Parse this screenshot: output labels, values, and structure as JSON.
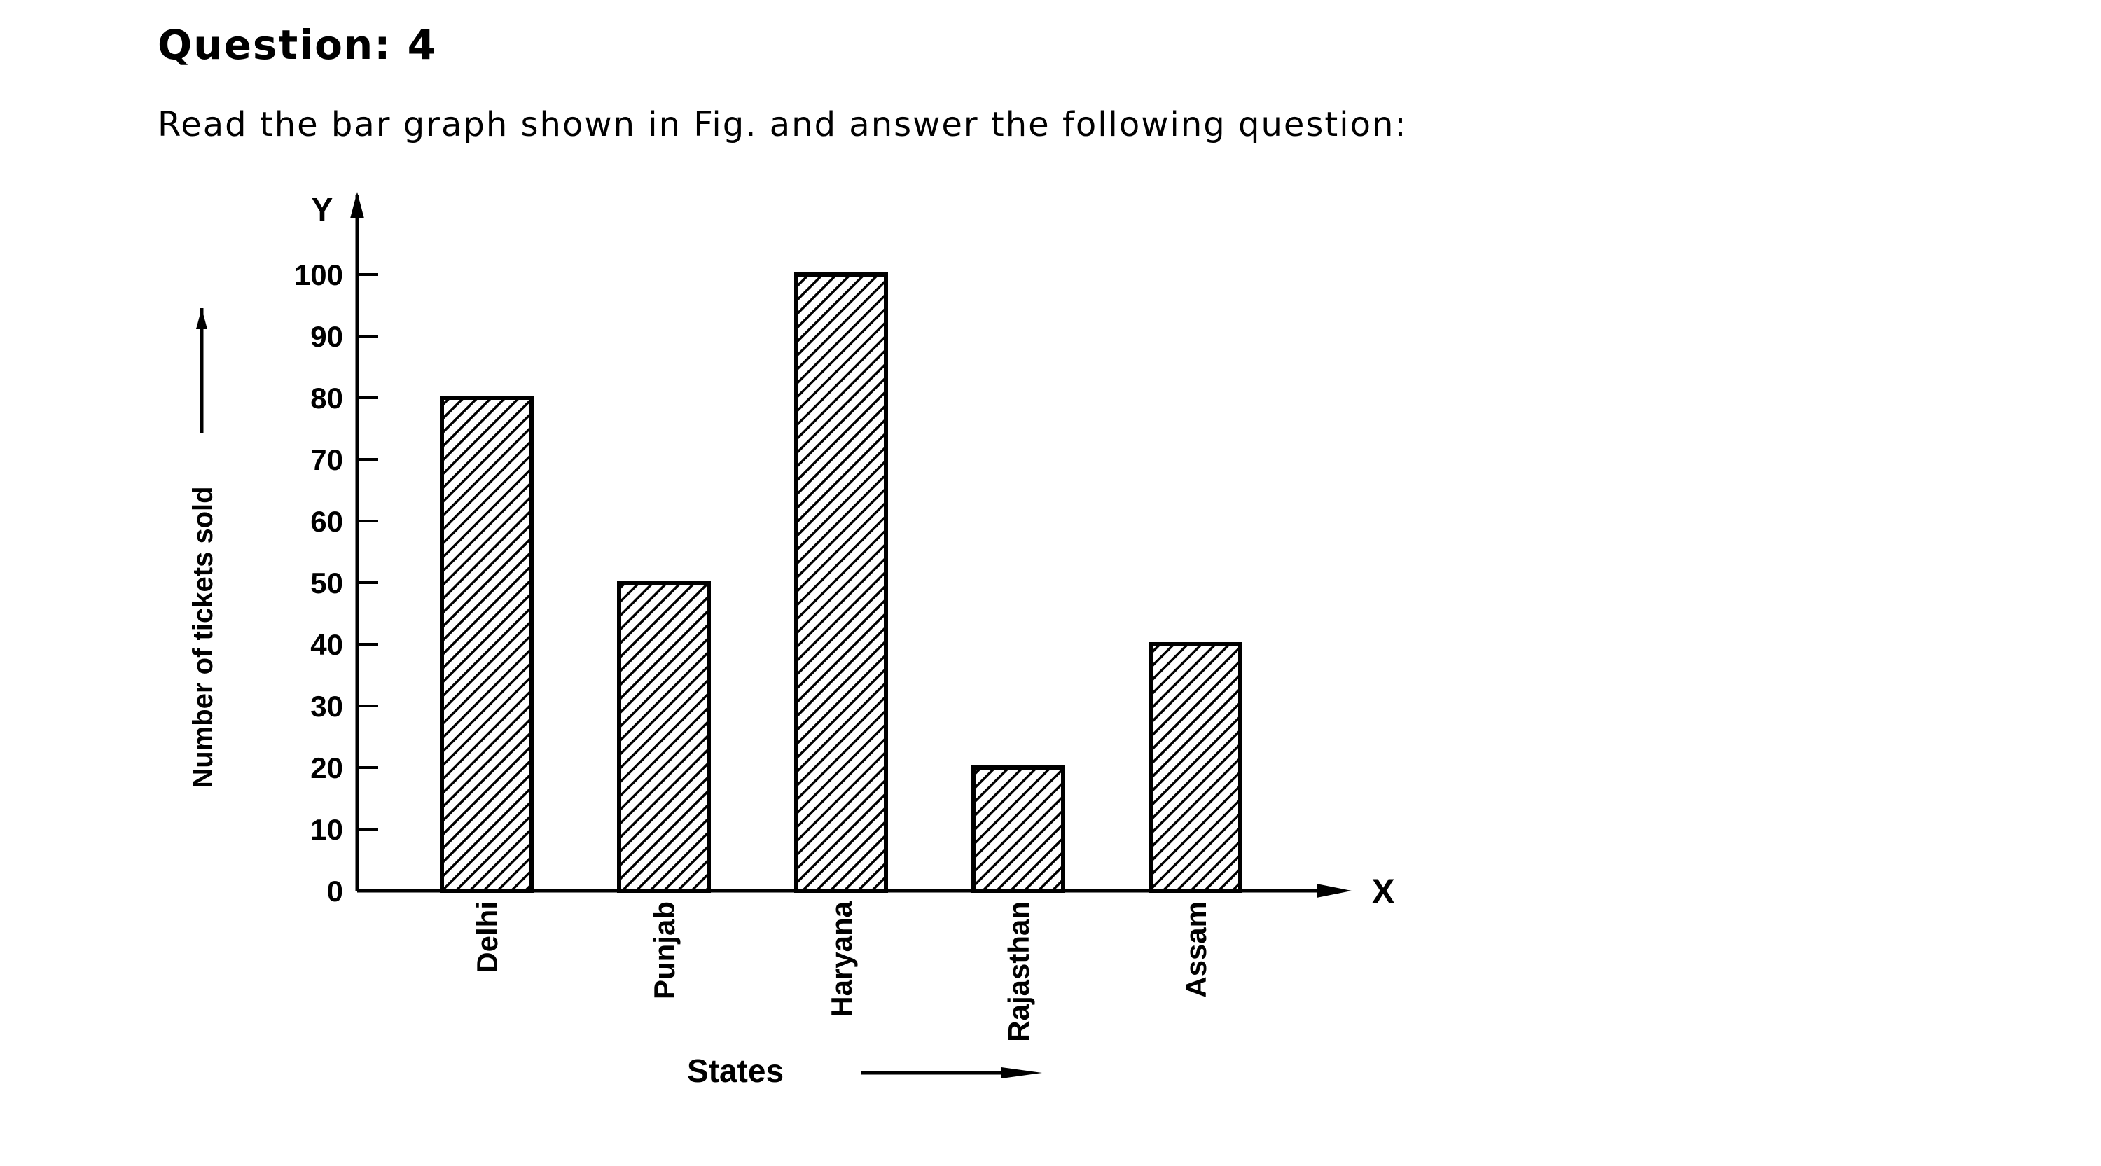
{
  "question": {
    "title": "Question: 4",
    "text": "Read the bar graph shown in Fig. and answer the following question:"
  },
  "chart_data": {
    "type": "bar",
    "categories": [
      "Delhi",
      "Punjab",
      "Haryana",
      "Rajasthan",
      "Assam"
    ],
    "values": [
      80,
      50,
      100,
      20,
      40
    ],
    "xlabel": "States",
    "ylabel": "Number of tickets sold",
    "x_axis_letter": "X",
    "y_axis_letter": "Y",
    "ylim": [
      0,
      100
    ],
    "yticks": [
      0,
      10,
      20,
      30,
      40,
      50,
      60,
      70,
      80,
      90,
      100
    ],
    "grid": false,
    "bar_fill": "hatched",
    "legend": "none"
  }
}
